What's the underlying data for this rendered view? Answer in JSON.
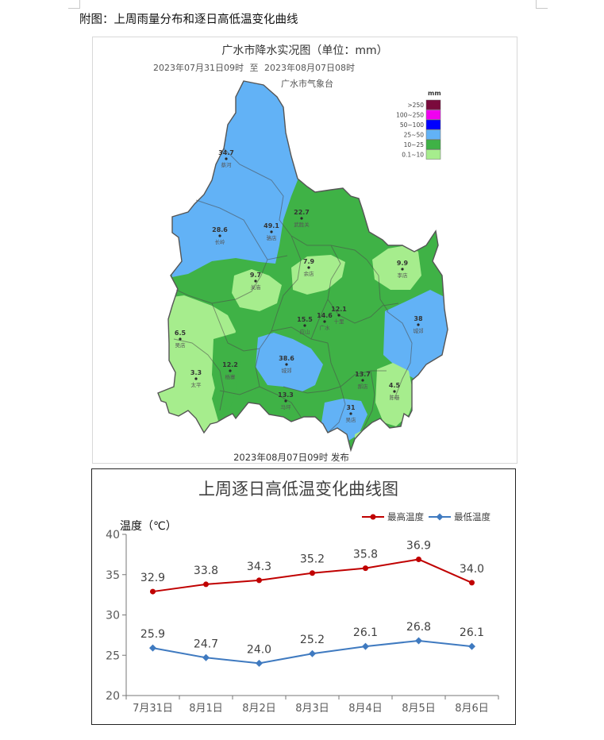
{
  "document": {
    "caption": "附图：上周雨量分布和逐日高低温变化曲线"
  },
  "rain_map": {
    "title": "广水市降水实况图（单位：mm）",
    "period_start": "2023年07月31日09时",
    "period_sep": "至",
    "period_end": "2023年08月07日08时",
    "agency": "广水市气象台",
    "issued": "2023年08月07日09时 发布",
    "legend_unit": "mm",
    "legend": [
      {
        "label": ">250",
        "color": "#7a0a3c"
      },
      {
        "label": "100~250",
        "color": "#f000f0"
      },
      {
        "label": "50~100",
        "color": "#0000ff"
      },
      {
        "label": "25~50",
        "color": "#62b2f6"
      },
      {
        "label": "10~25",
        "color": "#3fb246"
      },
      {
        "label": "0.1~10",
        "color": "#a6ed8d"
      }
    ],
    "stations": [
      {
        "value": "34.7",
        "name": "蔡河"
      },
      {
        "value": "28.6",
        "name": "长岭"
      },
      {
        "value": "49.1",
        "name": "骆店"
      },
      {
        "value": "22.7",
        "name": "武胜关"
      },
      {
        "value": "7.9",
        "name": "余店"
      },
      {
        "value": "9.9",
        "name": "李店"
      },
      {
        "value": "9.7",
        "name": "关庙"
      },
      {
        "value": "12.1",
        "name": "十里"
      },
      {
        "value": "14.6",
        "name": "广水"
      },
      {
        "value": "15.5",
        "name": "应山"
      },
      {
        "value": "38",
        "name": "城郊"
      },
      {
        "value": "6.5",
        "name": "吴店"
      },
      {
        "value": "38.6",
        "name": "城郊"
      },
      {
        "value": "3.3",
        "name": "太平"
      },
      {
        "value": "12.2",
        "name": "杨寨"
      },
      {
        "value": "13.7",
        "name": "郝店"
      },
      {
        "value": "4.5",
        "name": "陈巷"
      },
      {
        "value": "13.3",
        "name": "马坪"
      },
      {
        "value": "31",
        "name": "吴店"
      }
    ]
  },
  "temp_chart": {
    "title": "上周逐日高低温变化曲线图"
  },
  "chart_data": {
    "type": "line",
    "title": "上周逐日高低温变化曲线图",
    "ylabel": "温度（℃）",
    "xlabel": "",
    "categories": [
      "7月31日",
      "8月1日",
      "8月2日",
      "8月3日",
      "8月4日",
      "8月5日",
      "8月6日"
    ],
    "ylim": [
      20,
      40
    ],
    "yticks": [
      20,
      25,
      30,
      35,
      40
    ],
    "legend_position": "top-right",
    "grid": false,
    "series": [
      {
        "name": "最高温度",
        "color": "#c00000",
        "marker": "circle",
        "values": [
          32.9,
          33.8,
          34.3,
          35.2,
          35.8,
          36.9,
          34.0
        ]
      },
      {
        "name": "最低温度",
        "color": "#3f7ac0",
        "marker": "diamond",
        "values": [
          25.9,
          24.7,
          24.0,
          25.2,
          26.1,
          26.8,
          26.1
        ]
      }
    ]
  }
}
